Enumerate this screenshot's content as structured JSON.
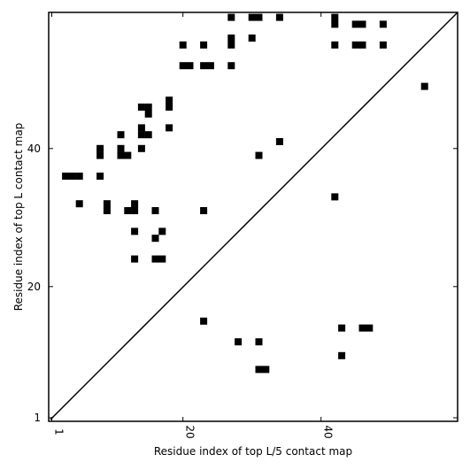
{
  "chart_data": {
    "type": "heatmap",
    "title": "",
    "xlabel": "Residue index of top L/5 contact map",
    "ylabel": "Residue index of top L contact map",
    "xlim": [
      1,
      60
    ],
    "ylim": [
      1,
      60
    ],
    "x_ticks": [
      1,
      20,
      40
    ],
    "y_ticks": [
      1,
      20,
      40
    ],
    "x_tick_labels": [
      "1",
      "20",
      "40"
    ],
    "y_tick_labels": [
      "1",
      "20",
      "40"
    ],
    "diagonal": true,
    "grid": false,
    "cell_color": "#000000",
    "upper_contacts": [
      [
        27,
        59
      ],
      [
        30,
        59
      ],
      [
        31,
        59
      ],
      [
        34,
        59
      ],
      [
        42,
        59
      ],
      [
        42,
        58
      ],
      [
        45,
        58
      ],
      [
        46,
        58
      ],
      [
        49,
        58
      ],
      [
        27,
        56
      ],
      [
        30,
        56
      ],
      [
        20,
        55
      ],
      [
        23,
        55
      ],
      [
        27,
        55
      ],
      [
        42,
        55
      ],
      [
        45,
        55
      ],
      [
        46,
        55
      ],
      [
        49,
        55
      ],
      [
        20,
        52
      ],
      [
        21,
        52
      ],
      [
        23,
        52
      ],
      [
        24,
        52
      ],
      [
        27,
        52
      ],
      [
        55,
        49
      ],
      [
        18,
        47
      ],
      [
        18,
        46
      ],
      [
        14,
        46
      ],
      [
        15,
        46
      ],
      [
        15,
        45
      ],
      [
        14,
        43
      ],
      [
        18,
        43
      ],
      [
        11,
        42
      ],
      [
        14,
        42
      ],
      [
        15,
        42
      ],
      [
        34,
        41
      ],
      [
        8,
        40
      ],
      [
        11,
        40
      ],
      [
        14,
        40
      ],
      [
        8,
        39
      ],
      [
        11,
        39
      ],
      [
        12,
        39
      ],
      [
        31,
        39
      ],
      [
        3,
        36
      ],
      [
        4,
        36
      ],
      [
        5,
        36
      ],
      [
        8,
        36
      ],
      [
        42,
        33
      ],
      [
        5,
        32
      ],
      [
        9,
        32
      ],
      [
        13,
        32
      ],
      [
        9,
        31
      ],
      [
        12,
        31
      ],
      [
        13,
        31
      ],
      [
        16,
        31
      ],
      [
        23,
        31
      ],
      [
        13,
        28
      ],
      [
        17,
        28
      ],
      [
        16,
        27
      ],
      [
        13,
        24
      ],
      [
        16,
        24
      ],
      [
        17,
        24
      ]
    ],
    "lower_contacts": [
      [
        23,
        15
      ],
      [
        43,
        14
      ],
      [
        46,
        14
      ],
      [
        47,
        14
      ],
      [
        28,
        12
      ],
      [
        31,
        12
      ],
      [
        43,
        10
      ],
      [
        31,
        8
      ],
      [
        32,
        8
      ]
    ]
  }
}
